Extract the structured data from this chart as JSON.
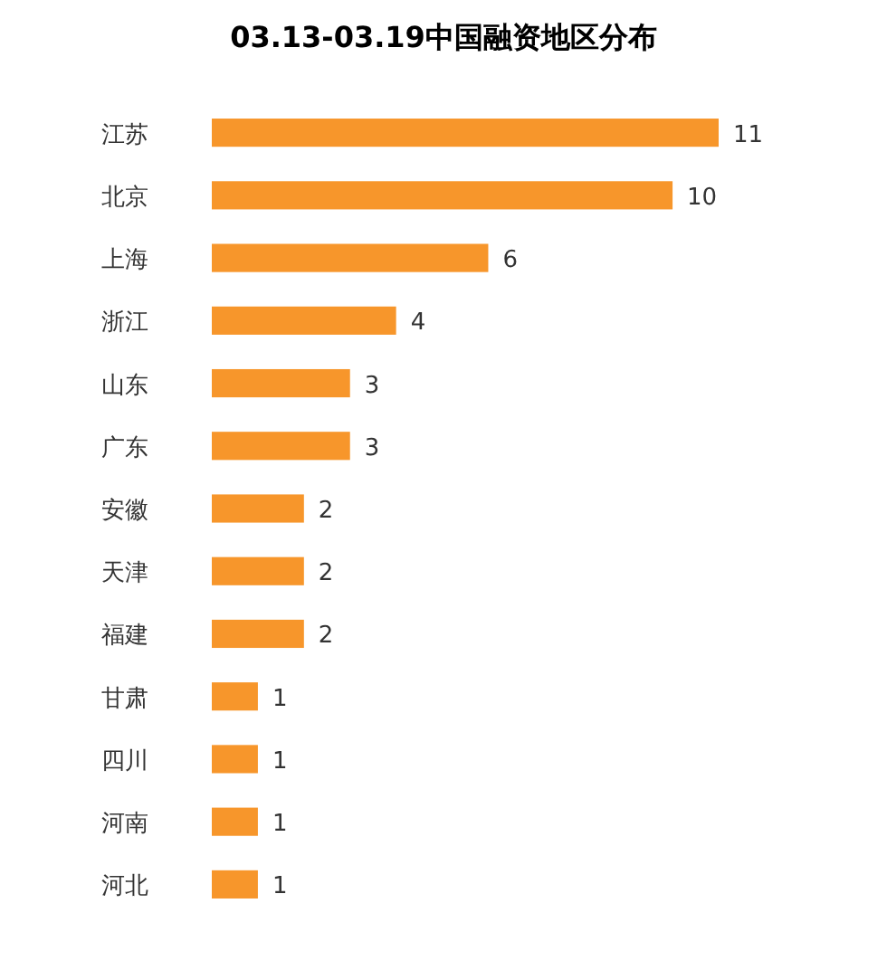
{
  "chart_data": {
    "type": "bar",
    "orientation": "horizontal",
    "title": "03.13-03.19中国融资地区分布",
    "categories": [
      "江苏",
      "北京",
      "上海",
      "浙江",
      "山东",
      "广东",
      "安徽",
      "天津",
      "福建",
      "甘肃",
      "四川",
      "河南",
      "河北"
    ],
    "values": [
      11,
      10,
      6,
      4,
      3,
      3,
      2,
      2,
      2,
      1,
      1,
      1,
      1
    ],
    "color": "#f7962b",
    "data_labels": true
  }
}
